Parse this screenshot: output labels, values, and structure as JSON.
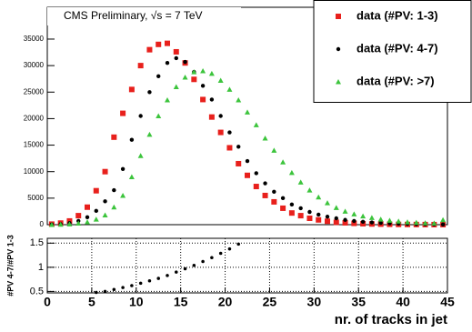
{
  "chart_data": [
    {
      "type": "scatter",
      "title": "CMS Preliminary, √s = 7 TeV",
      "x": [
        0.5,
        1.5,
        2.5,
        3.5,
        4.5,
        5.5,
        6.5,
        7.5,
        8.5,
        9.5,
        10.5,
        11.5,
        12.5,
        13.5,
        14.5,
        15.5,
        16.5,
        17.5,
        18.5,
        19.5,
        20.5,
        21.5,
        22.5,
        23.5,
        24.5,
        25.5,
        26.5,
        27.5,
        28.5,
        29.5,
        30.5,
        31.5,
        32.5,
        33.5,
        34.5,
        35.5,
        36.5,
        37.5,
        38.5,
        39.5,
        40.5,
        41.5,
        42.5,
        43.5,
        44.5
      ],
      "series": [
        {
          "name": "data (#PV: 1-3)",
          "color": "#e8201c",
          "marker": "square",
          "values": [
            100,
            300,
            700,
            1700,
            3300,
            6400,
            10000,
            16500,
            21000,
            25500,
            30000,
            33000,
            34000,
            34200,
            32600,
            30500,
            27400,
            23600,
            20300,
            17400,
            14500,
            11500,
            9300,
            7200,
            5500,
            4300,
            3100,
            2200,
            1700,
            1200,
            900,
            650,
            450,
            350,
            250,
            180,
            130,
            100,
            70,
            50,
            40,
            30,
            20,
            15,
            10
          ]
        },
        {
          "name": "data (#PV: 4-7)",
          "color": "#000000",
          "marker": "circle",
          "values": [
            30,
            100,
            300,
            700,
            1400,
            2600,
            4400,
            6500,
            10500,
            16000,
            20500,
            25000,
            28000,
            30500,
            31400,
            30700,
            28800,
            26200,
            23600,
            20500,
            17400,
            14700,
            12000,
            9700,
            7800,
            6200,
            5000,
            3800,
            3100,
            2400,
            1900,
            1500,
            1200,
            900,
            700,
            550,
            420,
            330,
            250,
            190,
            140,
            100,
            80,
            60,
            40
          ]
        },
        {
          "name": "data (#PV: >7)",
          "color": "#3cc43c",
          "marker": "triangle",
          "values": [
            10,
            40,
            100,
            250,
            500,
            1000,
            1800,
            3300,
            5500,
            9000,
            13000,
            17000,
            20500,
            23500,
            26000,
            27800,
            28800,
            29000,
            28500,
            27200,
            25500,
            23500,
            21200,
            18800,
            16300,
            14000,
            11800,
            9800,
            8000,
            6500,
            5200,
            4100,
            3200,
            2500,
            2000,
            1600,
            1300,
            1000,
            800,
            650,
            500,
            400,
            330,
            270,
            900
          ]
        }
      ],
      "xlim": [
        0,
        45
      ],
      "ylim": [
        0,
        41000
      ],
      "yticks": [
        0,
        5000,
        10000,
        15000,
        20000,
        25000,
        30000,
        35000
      ]
    },
    {
      "type": "scatter",
      "x_label": "nr. of tracks in jet",
      "y_label": "#PV 4-7/#PV 1-3",
      "x": [
        0.5,
        1.5,
        2.5,
        3.5,
        4.5,
        5.5,
        6.5,
        7.5,
        8.5,
        9.5,
        10.5,
        11.5,
        12.5,
        13.5,
        14.5,
        15.5,
        16.5,
        17.5,
        18.5,
        19.5,
        20.5,
        21.5
      ],
      "series": [
        {
          "color": "#000000",
          "marker": "circle",
          "values": [
            null,
            null,
            null,
            null,
            null,
            0.48,
            0.5,
            0.54,
            0.58,
            0.62,
            0.67,
            0.72,
            0.77,
            0.83,
            0.9,
            0.97,
            1.04,
            1.12,
            1.2,
            1.29,
            1.38,
            1.48
          ]
        }
      ],
      "xlim": [
        0,
        45
      ],
      "ylim": [
        0.47,
        1.6
      ],
      "xticks": [
        0,
        5,
        10,
        15,
        20,
        25,
        30,
        35,
        40,
        45
      ],
      "yticks": [
        0.5,
        1,
        1.5
      ],
      "grid": true
    }
  ]
}
